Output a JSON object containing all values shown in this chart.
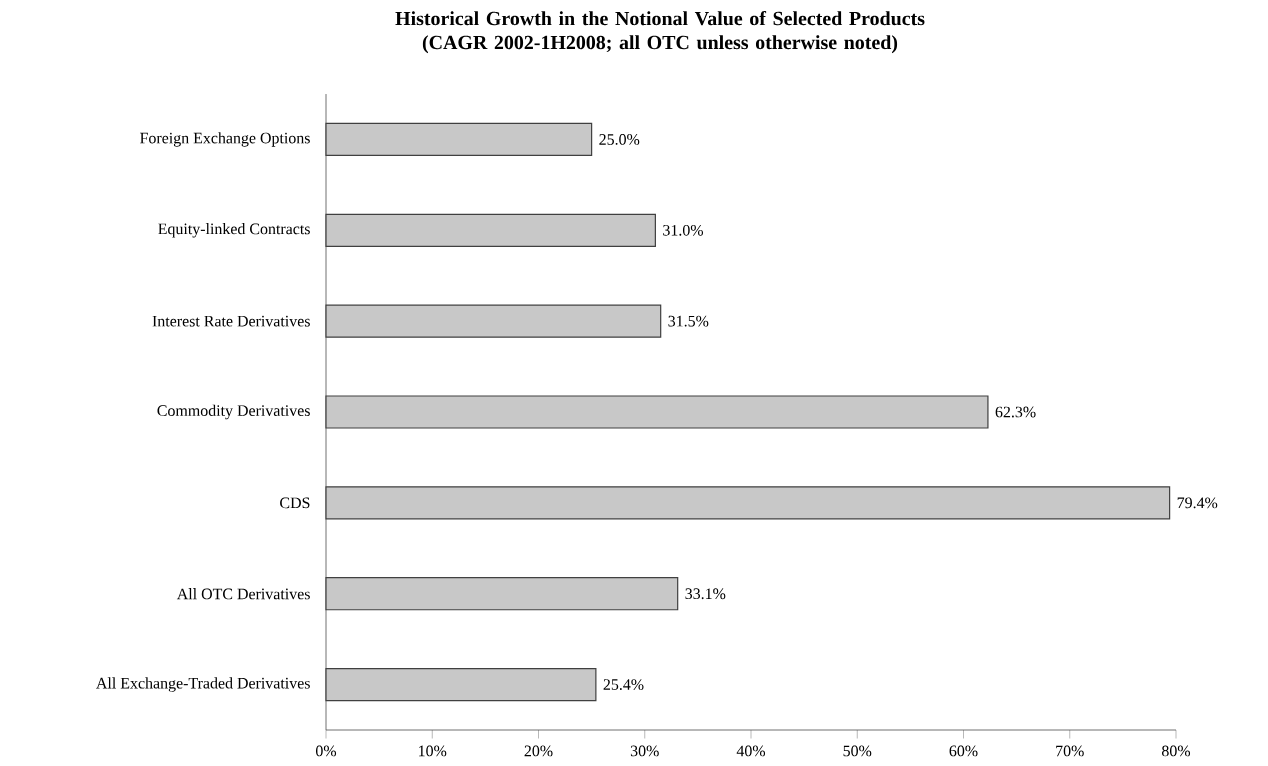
{
  "chart_data": {
    "type": "bar",
    "orientation": "horizontal",
    "title": "Historical Growth in the Notional Value of Selected Products (CAGR 2002-1H2008; all OTC unless otherwise noted)",
    "categories": [
      "Foreign Exchange Options",
      "Equity-linked Contracts",
      "Interest Rate Derivatives",
      "Commodity Derivatives",
      "CDS",
      "All OTC Derivatives",
      "All Exchange-Traded Derivatives"
    ],
    "values": [
      25.0,
      31.0,
      31.5,
      62.3,
      79.4,
      33.1,
      25.4
    ],
    "value_labels": [
      "25.0%",
      "31.0%",
      "31.5%",
      "62.3%",
      "79.4%",
      "33.1%",
      "25.4%"
    ],
    "color": "#c8c8c8",
    "xlim": [
      0,
      80
    ],
    "xticks": [
      {
        "value": 0,
        "label": "0%"
      },
      {
        "value": 10,
        "label": "10%"
      },
      {
        "value": 20,
        "label": "20%"
      },
      {
        "value": 30,
        "label": "30%"
      },
      {
        "value": 40,
        "label": "40%"
      },
      {
        "value": 50,
        "label": "50%"
      },
      {
        "value": 60,
        "label": "60%"
      },
      {
        "value": 70,
        "label": "70%"
      },
      {
        "value": 80,
        "label": "80%"
      }
    ],
    "grid": false
  }
}
